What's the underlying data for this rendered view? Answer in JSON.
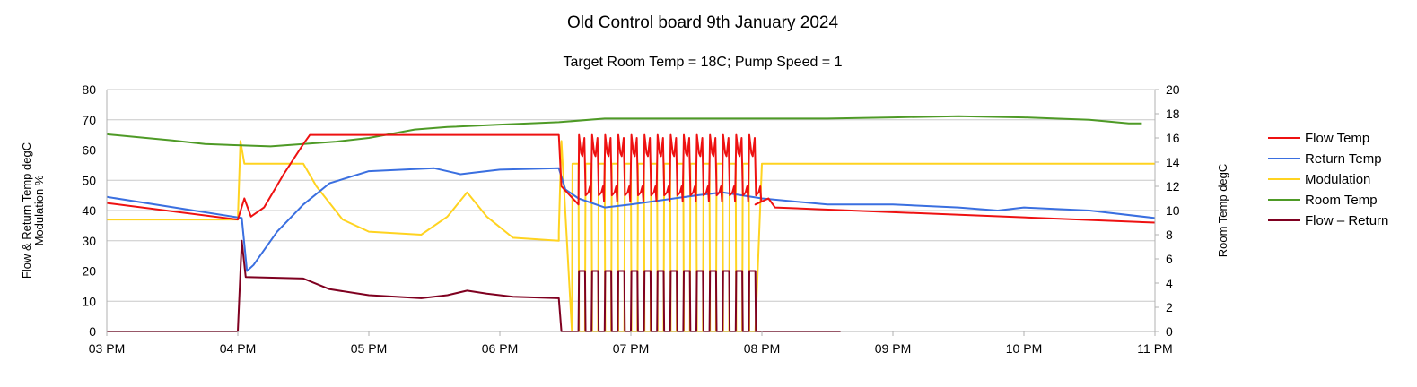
{
  "chart_data": {
    "type": "line",
    "title": "Old Control board 9th January 2024",
    "subtitle": "Target Room Temp = 18C; Pump Speed = 1",
    "ylabel_left": [
      "Flow & Return Temp degC",
      "Modulation %"
    ],
    "ylabel_right": "Room Temp degC",
    "x_ticks": [
      "03 PM",
      "04 PM",
      "05 PM",
      "06 PM",
      "07 PM",
      "08 PM",
      "09 PM",
      "10 PM",
      "11 PM"
    ],
    "xlim_hours": [
      15,
      23
    ],
    "ylim_left": [
      0,
      80
    ],
    "ylim_right": [
      0,
      20
    ],
    "y_ticks_left": [
      "0",
      "10",
      "20",
      "30",
      "40",
      "50",
      "60",
      "70",
      "80"
    ],
    "y_ticks_right": [
      "0",
      "2",
      "4",
      "6",
      "8",
      "10",
      "12",
      "14",
      "16",
      "18",
      "20"
    ],
    "grid": true,
    "legend_position": "right",
    "colors": {
      "flow": "#ee1111",
      "return": "#3a6fe0",
      "modulation": "#ffd320",
      "room": "#4e9a26",
      "diff": "#7f0020",
      "grid": "#c8c8c8"
    },
    "series": [
      {
        "key": "flow",
        "name": "Flow Temp",
        "axis": "left",
        "points": [
          [
            15.0,
            42.5
          ],
          [
            16.0,
            37.0
          ],
          [
            16.05,
            44
          ],
          [
            16.1,
            38
          ],
          [
            16.2,
            41
          ],
          [
            16.35,
            52
          ],
          [
            16.5,
            62
          ],
          [
            16.55,
            65
          ],
          [
            17.0,
            65
          ],
          [
            17.5,
            65
          ],
          [
            18.0,
            65
          ],
          [
            18.45,
            65
          ],
          [
            18.47,
            48
          ],
          [
            18.6,
            42
          ]
        ],
        "cycling": {
          "start": 18.6,
          "end": 19.95,
          "period": 0.1,
          "high": 65,
          "low": 43
        },
        "tail": [
          [
            19.95,
            42
          ],
          [
            20.05,
            44
          ],
          [
            20.1,
            41
          ],
          [
            23.0,
            36
          ]
        ]
      },
      {
        "key": "return",
        "name": "Return Temp",
        "axis": "left",
        "points": [
          [
            15.0,
            44.5
          ],
          [
            16.03,
            37.5
          ],
          [
            16.07,
            20
          ],
          [
            16.12,
            22
          ],
          [
            16.3,
            33
          ],
          [
            16.5,
            42
          ],
          [
            16.7,
            49
          ],
          [
            17.0,
            53
          ],
          [
            17.5,
            54
          ],
          [
            17.7,
            52
          ],
          [
            17.8,
            52.5
          ],
          [
            18.0,
            53.5
          ],
          [
            18.45,
            54
          ],
          [
            18.5,
            47
          ],
          [
            18.6,
            44
          ],
          [
            18.8,
            41
          ],
          [
            19.0,
            42
          ],
          [
            19.5,
            45
          ],
          [
            19.7,
            46
          ],
          [
            20.0,
            44
          ],
          [
            20.5,
            42
          ],
          [
            21.0,
            42
          ],
          [
            21.5,
            41
          ],
          [
            21.8,
            40
          ],
          [
            22.0,
            41
          ],
          [
            22.5,
            40
          ],
          [
            23.0,
            37.5
          ]
        ]
      },
      {
        "key": "modulation",
        "name": "Modulation",
        "axis": "left",
        "points": [
          [
            15.0,
            37
          ],
          [
            16.0,
            37
          ],
          [
            16.02,
            63
          ],
          [
            16.05,
            55.5
          ],
          [
            16.5,
            55.5
          ],
          [
            16.6,
            48
          ],
          [
            16.8,
            37
          ],
          [
            17.0,
            33
          ],
          [
            17.4,
            32
          ],
          [
            17.6,
            38
          ],
          [
            17.75,
            46
          ],
          [
            17.9,
            38
          ],
          [
            18.1,
            31
          ],
          [
            18.45,
            30
          ],
          [
            18.45,
            33
          ],
          [
            18.47,
            63
          ]
        ],
        "pulses": {
          "start": 18.55,
          "end": 19.95,
          "period": 0.1,
          "high": 55.5,
          "low": 0
        },
        "tail": [
          [
            19.95,
            0
          ],
          [
            20.0,
            55.5
          ],
          [
            23.0,
            55.5
          ]
        ]
      },
      {
        "key": "room",
        "name": "Room Temp",
        "axis": "right",
        "points": [
          [
            15.0,
            16.3
          ],
          [
            15.2,
            16.1
          ],
          [
            15.5,
            15.8
          ],
          [
            15.75,
            15.5
          ],
          [
            16.0,
            15.4
          ],
          [
            16.25,
            15.3
          ],
          [
            16.5,
            15.5
          ],
          [
            16.75,
            15.7
          ],
          [
            17.0,
            16.0
          ],
          [
            17.35,
            16.7
          ],
          [
            17.6,
            16.9
          ],
          [
            18.0,
            17.1
          ],
          [
            18.45,
            17.3
          ],
          [
            18.8,
            17.6
          ],
          [
            19.5,
            17.6
          ],
          [
            20.0,
            17.6
          ],
          [
            20.5,
            17.6
          ],
          [
            21.0,
            17.7
          ],
          [
            21.5,
            17.8
          ],
          [
            22.0,
            17.7
          ],
          [
            22.5,
            17.5
          ],
          [
            22.8,
            17.2
          ],
          [
            22.9,
            17.2
          ]
        ]
      },
      {
        "key": "diff",
        "name": "Flow – Return",
        "axis": "left",
        "points": [
          [
            15.0,
            0
          ],
          [
            16.0,
            0
          ],
          [
            16.03,
            30
          ],
          [
            16.06,
            18
          ],
          [
            16.5,
            17.5
          ],
          [
            16.7,
            14
          ],
          [
            17.0,
            12
          ],
          [
            17.4,
            11
          ],
          [
            17.6,
            12
          ],
          [
            17.75,
            13.5
          ],
          [
            17.9,
            12.5
          ],
          [
            18.1,
            11.5
          ],
          [
            18.45,
            11
          ],
          [
            18.47,
            0
          ]
        ],
        "pulses": {
          "start": 18.6,
          "end": 19.95,
          "period": 0.1,
          "high": 20,
          "low": 0
        },
        "tail": [
          [
            19.95,
            0
          ],
          [
            20.6,
            0
          ]
        ]
      }
    ]
  }
}
